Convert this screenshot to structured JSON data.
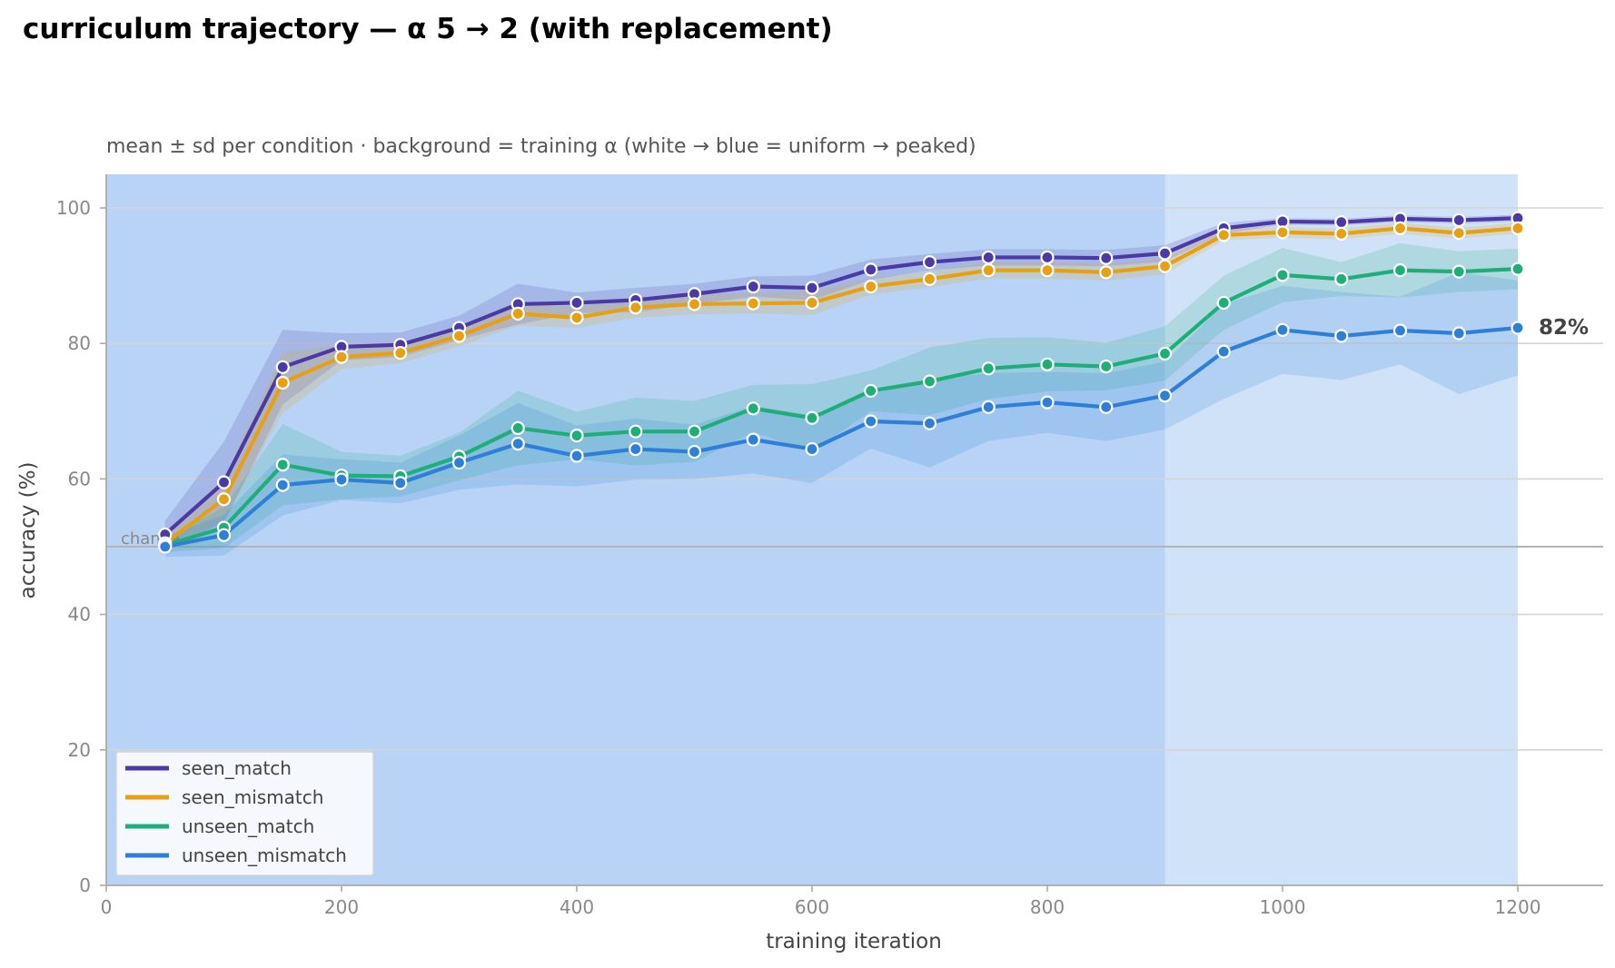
{
  "chart_data": {
    "type": "line",
    "title": "curriculum trajectory — α 5 → 2 (with replacement)",
    "subtitle": "mean ± sd per condition · background = training α (white → blue = uniform → peaked)",
    "xlabel": "training iteration",
    "ylabel": "accuracy (%)",
    "xlim": [
      0,
      1270
    ],
    "ylim": [
      0,
      105
    ],
    "xticks": [
      0,
      200,
      400,
      600,
      800,
      1000,
      1200
    ],
    "yticks": [
      0,
      20,
      40,
      60,
      80,
      100
    ],
    "grid": "horizontal",
    "legend_position": "lower-left",
    "chance": {
      "value": 50,
      "label": "chance"
    },
    "background_bands": [
      {
        "x0": 0,
        "x1": 900,
        "color": "#b8d3f6"
      },
      {
        "x0": 900,
        "x1": 1200,
        "color": "#d0e2f8"
      }
    ],
    "end_label": "82%",
    "x": [
      50,
      100,
      150,
      200,
      250,
      300,
      350,
      400,
      450,
      500,
      550,
      600,
      650,
      700,
      750,
      800,
      850,
      900,
      950,
      1000,
      1050,
      1100,
      1150,
      1200
    ],
    "series": [
      {
        "name": "seen_match",
        "color": "#4b3aa6",
        "values": [
          51.8,
          59.5,
          76.5,
          79.5,
          79.8,
          82.3,
          85.8,
          86.0,
          86.4,
          87.3,
          88.4,
          88.2,
          90.9,
          92.0,
          92.7,
          92.7,
          92.6,
          93.3,
          97.0,
          98.0,
          97.9,
          98.4,
          98.2,
          98.5
        ],
        "sd": [
          2.0,
          6.0,
          5.5,
          2.0,
          1.8,
          1.8,
          3.0,
          1.5,
          1.8,
          1.5,
          1.5,
          1.8,
          1.5,
          1.2,
          1.2,
          1.2,
          1.2,
          1.2,
          0.8,
          0.5,
          0.5,
          0.5,
          0.5,
          0.5
        ]
      },
      {
        "name": "seen_mismatch",
        "color": "#e8a013",
        "values": [
          50.5,
          57.0,
          74.2,
          78.0,
          78.6,
          81.1,
          84.4,
          83.8,
          85.3,
          85.8,
          85.9,
          86.0,
          88.4,
          89.5,
          90.8,
          90.8,
          90.5,
          91.4,
          96.0,
          96.4,
          96.2,
          97.0,
          96.3,
          97.0
        ],
        "sd": [
          1.5,
          3.0,
          4.5,
          1.8,
          1.5,
          1.5,
          1.8,
          1.5,
          1.5,
          1.5,
          1.5,
          1.8,
          1.2,
          1.2,
          1.2,
          1.2,
          1.2,
          1.2,
          0.8,
          0.8,
          0.8,
          0.8,
          0.8,
          0.8
        ]
      },
      {
        "name": "unseen_match",
        "color": "#1fae7a",
        "values": [
          50.2,
          52.8,
          62.1,
          60.5,
          60.4,
          63.3,
          67.5,
          66.4,
          67.0,
          67.0,
          70.4,
          69.0,
          73.0,
          74.4,
          76.3,
          76.9,
          76.6,
          78.5,
          86.0,
          90.1,
          89.5,
          90.8,
          90.6,
          91.0
        ],
        "sd": [
          1.0,
          3.0,
          6.0,
          3.5,
          3.0,
          3.5,
          5.5,
          3.5,
          5.0,
          4.5,
          3.5,
          5.0,
          3.0,
          5.0,
          4.5,
          4.0,
          3.5,
          4.0,
          4.0,
          4.0,
          2.5,
          4.0,
          3.0,
          3.0
        ]
      },
      {
        "name": "unseen_mismatch",
        "color": "#2f7fd8",
        "values": [
          50.0,
          51.7,
          59.1,
          59.9,
          59.4,
          62.4,
          65.2,
          63.4,
          64.4,
          64.0,
          65.8,
          64.4,
          68.5,
          68.2,
          70.6,
          71.3,
          70.6,
          72.3,
          78.8,
          82.0,
          81.1,
          81.9,
          81.5,
          82.3
        ],
        "sd": [
          1.5,
          3.0,
          4.5,
          3.0,
          3.0,
          4.0,
          6.0,
          4.5,
          4.5,
          4.0,
          5.0,
          5.0,
          4.0,
          6.5,
          5.0,
          4.5,
          5.0,
          5.0,
          7.0,
          6.5,
          6.5,
          5.0,
          9.0,
          7.0
        ]
      }
    ]
  }
}
